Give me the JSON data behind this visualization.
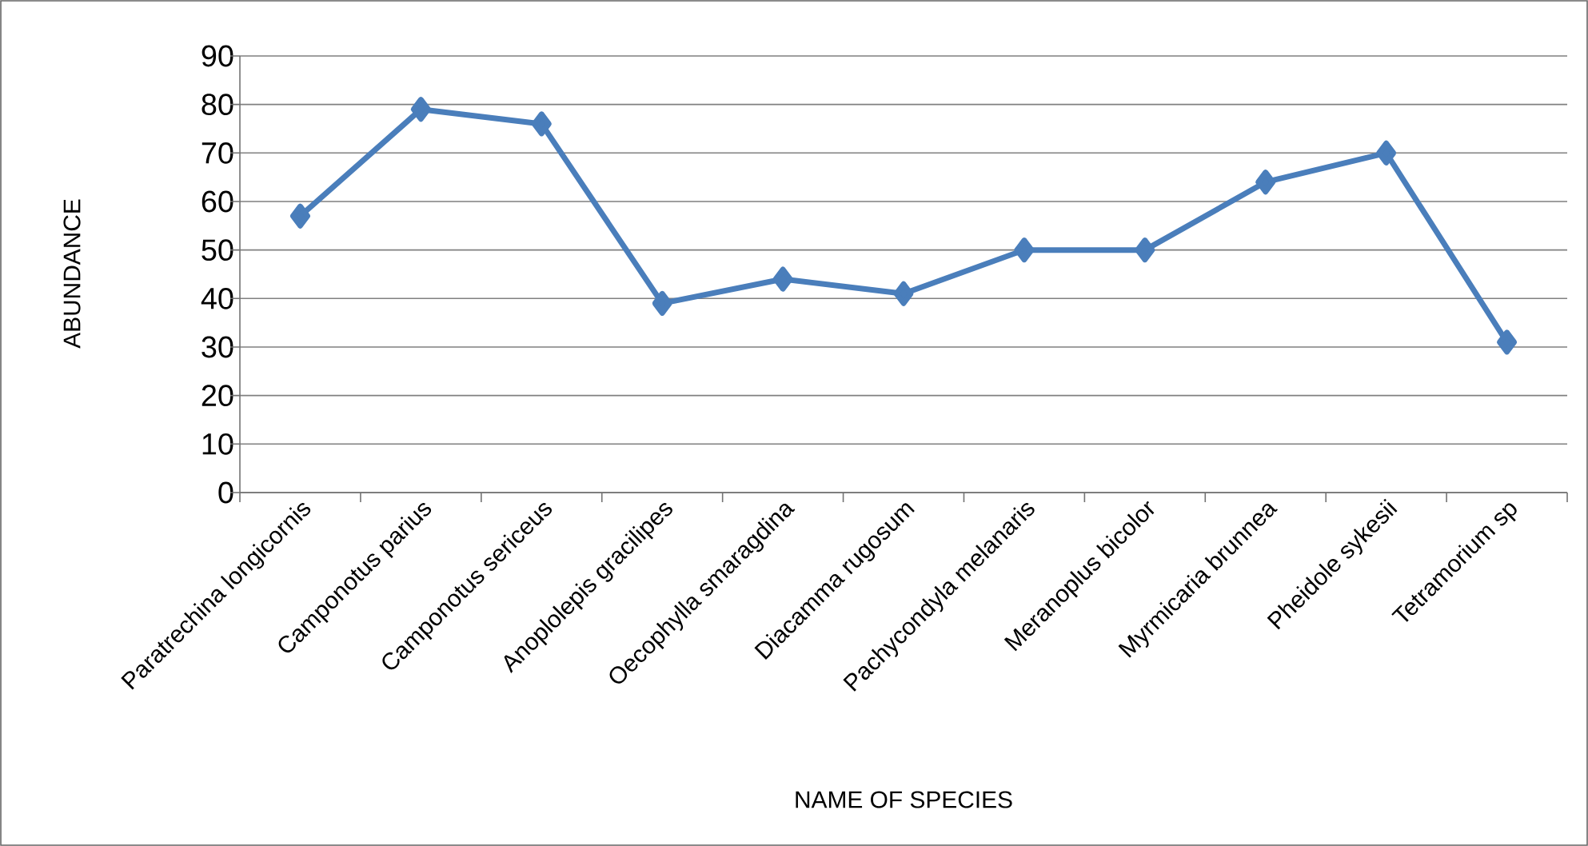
{
  "chart_data": {
    "type": "line",
    "xlabel": "NAME OF SPECIES",
    "ylabel": "ABUNDANCE",
    "categories": [
      "Paratrechina longicornis",
      "Camponotus parius",
      "Camponotus sericeus",
      "Anoplolepis gracilipes",
      "Oecophylla smaragdina",
      "Diacamma rugosum",
      "Pachycondyla melanaris",
      "Meranoplus bicolor",
      "Myrmicaria brunnea",
      "Pheidole sykesii",
      "Tetramorium sp"
    ],
    "values": [
      57,
      79,
      76,
      39,
      44,
      41,
      50,
      50,
      64,
      70,
      31
    ],
    "color": "#4a7ebb",
    "marker": "diamond",
    "line_style": "solid",
    "ylim": [
      0,
      90
    ],
    "yticks": [
      0,
      10,
      20,
      30,
      40,
      50,
      60,
      70,
      80,
      90
    ],
    "grid": "y"
  }
}
